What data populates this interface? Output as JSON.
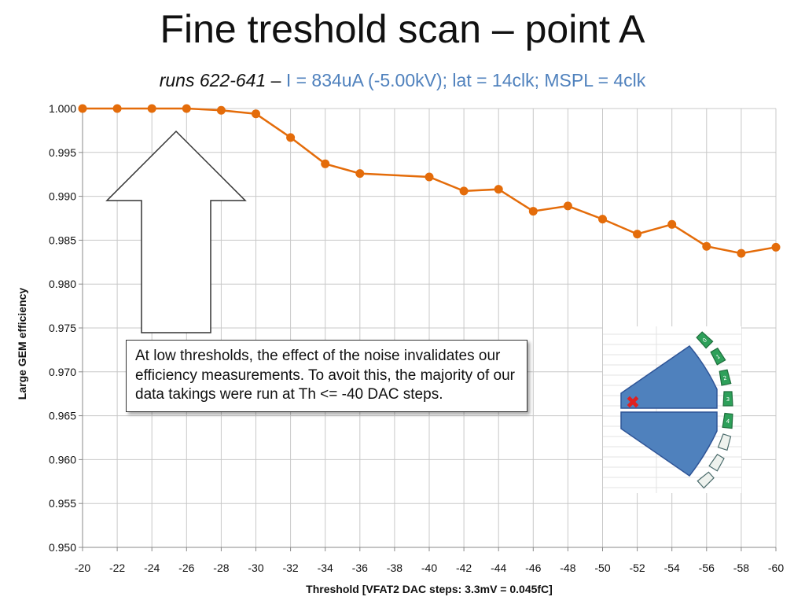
{
  "title": "Fine treshold scan – point A",
  "subtitle": {
    "runs": "runs 622-641",
    "separator": "–",
    "params": "I = 834uA (-5.00kV); lat = 14clk; MSPL = 4clk"
  },
  "callout": "At low thresholds, the effect of the noise invalidates our efficiency measurements. To avoit this, the majority of our data takings were run at Th <= -40 DAC steps.",
  "inset": {
    "chamber_labels": [
      "0",
      "1",
      "2",
      "3",
      "4"
    ],
    "marker": "✖"
  },
  "colors": {
    "series": "#e46c0a",
    "chamber": "#4f81bd",
    "readout_board": "#2ea05a",
    "marker": "#e02020"
  },
  "chart_data": {
    "type": "line",
    "title": "Fine treshold scan – point A",
    "xlabel": "Threshold [VFAT2 DAC steps: 3.3mV = 0.045fC]",
    "ylabel": "Large GEM efficiency",
    "xlim": [
      -20,
      -60
    ],
    "ylim": [
      0.95,
      1.0
    ],
    "x_ticks": [
      "-20",
      "-22",
      "-24",
      "-26",
      "-28",
      "-30",
      "-32",
      "-34",
      "-36",
      "-38",
      "-40",
      "-42",
      "-44",
      "-46",
      "-48",
      "-50",
      "-52",
      "-54",
      "-56",
      "-58",
      "-60"
    ],
    "y_ticks": [
      "1.000",
      "0.995",
      "0.990",
      "0.985",
      "0.980",
      "0.975",
      "0.970",
      "0.965",
      "0.960",
      "0.955",
      "0.950"
    ],
    "grid": true,
    "legend": "none",
    "series": [
      {
        "x": [
          -20,
          -22,
          -24,
          -26,
          -28,
          -30,
          -32,
          -34,
          -36,
          -40,
          -42,
          -44,
          -46,
          -48,
          -50,
          -52,
          -54,
          -56,
          -58,
          -60
        ],
        "y": [
          1.0,
          1.0,
          1.0,
          1.0,
          0.9998,
          0.9994,
          0.9967,
          0.9937,
          0.9926,
          0.9922,
          0.9906,
          0.9908,
          0.9883,
          0.9889,
          0.9874,
          0.9857,
          0.9868,
          0.9843,
          0.9835,
          0.9842
        ]
      }
    ]
  }
}
